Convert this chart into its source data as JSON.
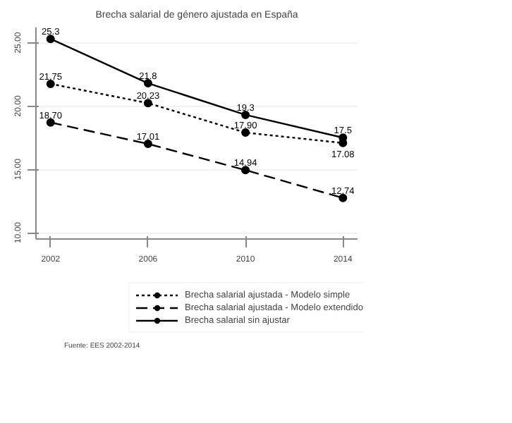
{
  "chart_data": {
    "type": "line",
    "title": "Brecha salarial de género ajustada en España",
    "x": [
      2002,
      2006,
      2010,
      2014
    ],
    "series": [
      {
        "name": "Brecha salarial ajustada - Modelo simple",
        "color": "#000000",
        "line_style": "dotted",
        "values": [
          21.75,
          20.23,
          17.9,
          17.08
        ],
        "value_labels": [
          "21.75",
          "20.23",
          "17.90",
          "17.08"
        ]
      },
      {
        "name": "Brecha salarial ajustada - Modelo extendido",
        "color": "#000000",
        "line_style": "dashed",
        "values": [
          18.7,
          17.01,
          14.94,
          12.74
        ],
        "value_labels": [
          "18.70",
          "17.01",
          "14.94",
          "12.74"
        ]
      },
      {
        "name": "Brecha salarial sin ajustar",
        "color": "#000000",
        "line_style": "solid",
        "values": [
          25.3,
          21.8,
          19.3,
          17.5
        ],
        "value_labels": [
          "25.3",
          "21.8",
          "19.3",
          "17.5"
        ]
      }
    ],
    "xlim": [
      2001.4,
      2014.6
    ],
    "ylim": [
      9.5,
      26.2
    ],
    "xticks": [
      2002,
      2006,
      2010,
      2014
    ],
    "yticks": [
      {
        "value": 10,
        "label": "10.00"
      },
      {
        "value": 15,
        "label": "15.00"
      },
      {
        "value": 20,
        "label": "20.00"
      },
      {
        "value": 25,
        "label": "25.00"
      }
    ],
    "grid": "y",
    "marker": "circle",
    "legend": "bottom",
    "annotations": [
      "Fuente: EES 2002-2014"
    ]
  }
}
